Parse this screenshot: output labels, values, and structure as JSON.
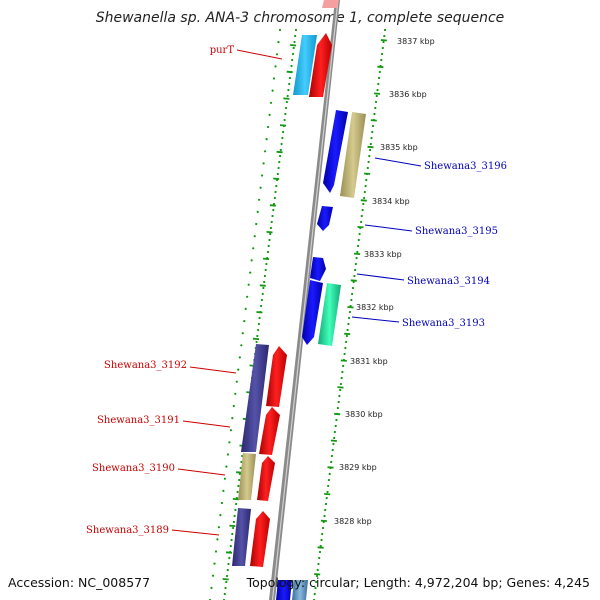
{
  "title": "Shewanella sp. ANA-3 chromosome 1, complete sequence",
  "accession_label": "Accession: NC_008577",
  "summary_label": "Topology: circular; Length: 4,972,204 bp; Genes: 4,245",
  "kbp_ticks": [
    {
      "kbp": 3837,
      "label": "3837 kbp"
    },
    {
      "kbp": 3836,
      "label": "3836 kbp"
    },
    {
      "kbp": 3835,
      "label": "3835 kbp"
    },
    {
      "kbp": 3834,
      "label": "3834 kbp"
    },
    {
      "kbp": 3833,
      "label": "3833 kbp"
    },
    {
      "kbp": 3832,
      "label": "3832 kbp"
    },
    {
      "kbp": 3831,
      "label": "3831 kbp"
    },
    {
      "kbp": 3830,
      "label": "3830 kbp"
    },
    {
      "kbp": 3829,
      "label": "3829 kbp"
    },
    {
      "kbp": 3828,
      "label": "3828 kbp"
    }
  ],
  "gene_labels": [
    {
      "name": "purT",
      "color": "#cc0000"
    },
    {
      "name": "Shewana3_3196",
      "color": "#0000bb"
    },
    {
      "name": "Shewana3_3195",
      "color": "#0000bb"
    },
    {
      "name": "Shewana3_3194",
      "color": "#0000bb"
    },
    {
      "name": "Shewana3_3193",
      "color": "#0000bb"
    },
    {
      "name": "Shewana3_3192",
      "color": "#cc0000"
    },
    {
      "name": "Shewana3_3191",
      "color": "#cc0000"
    },
    {
      "name": "Shewana3_3190",
      "color": "#cc0000"
    },
    {
      "name": "Shewana3_3189",
      "color": "#cc0000"
    }
  ],
  "colors": {
    "red": "#ee0000",
    "blue": "#0000dd",
    "cyan": "#22bbee",
    "olive": "#bbb070",
    "purple": "#3d3a8c",
    "green": "#22dd99",
    "dots": "#119911",
    "backbone": "#888888"
  }
}
